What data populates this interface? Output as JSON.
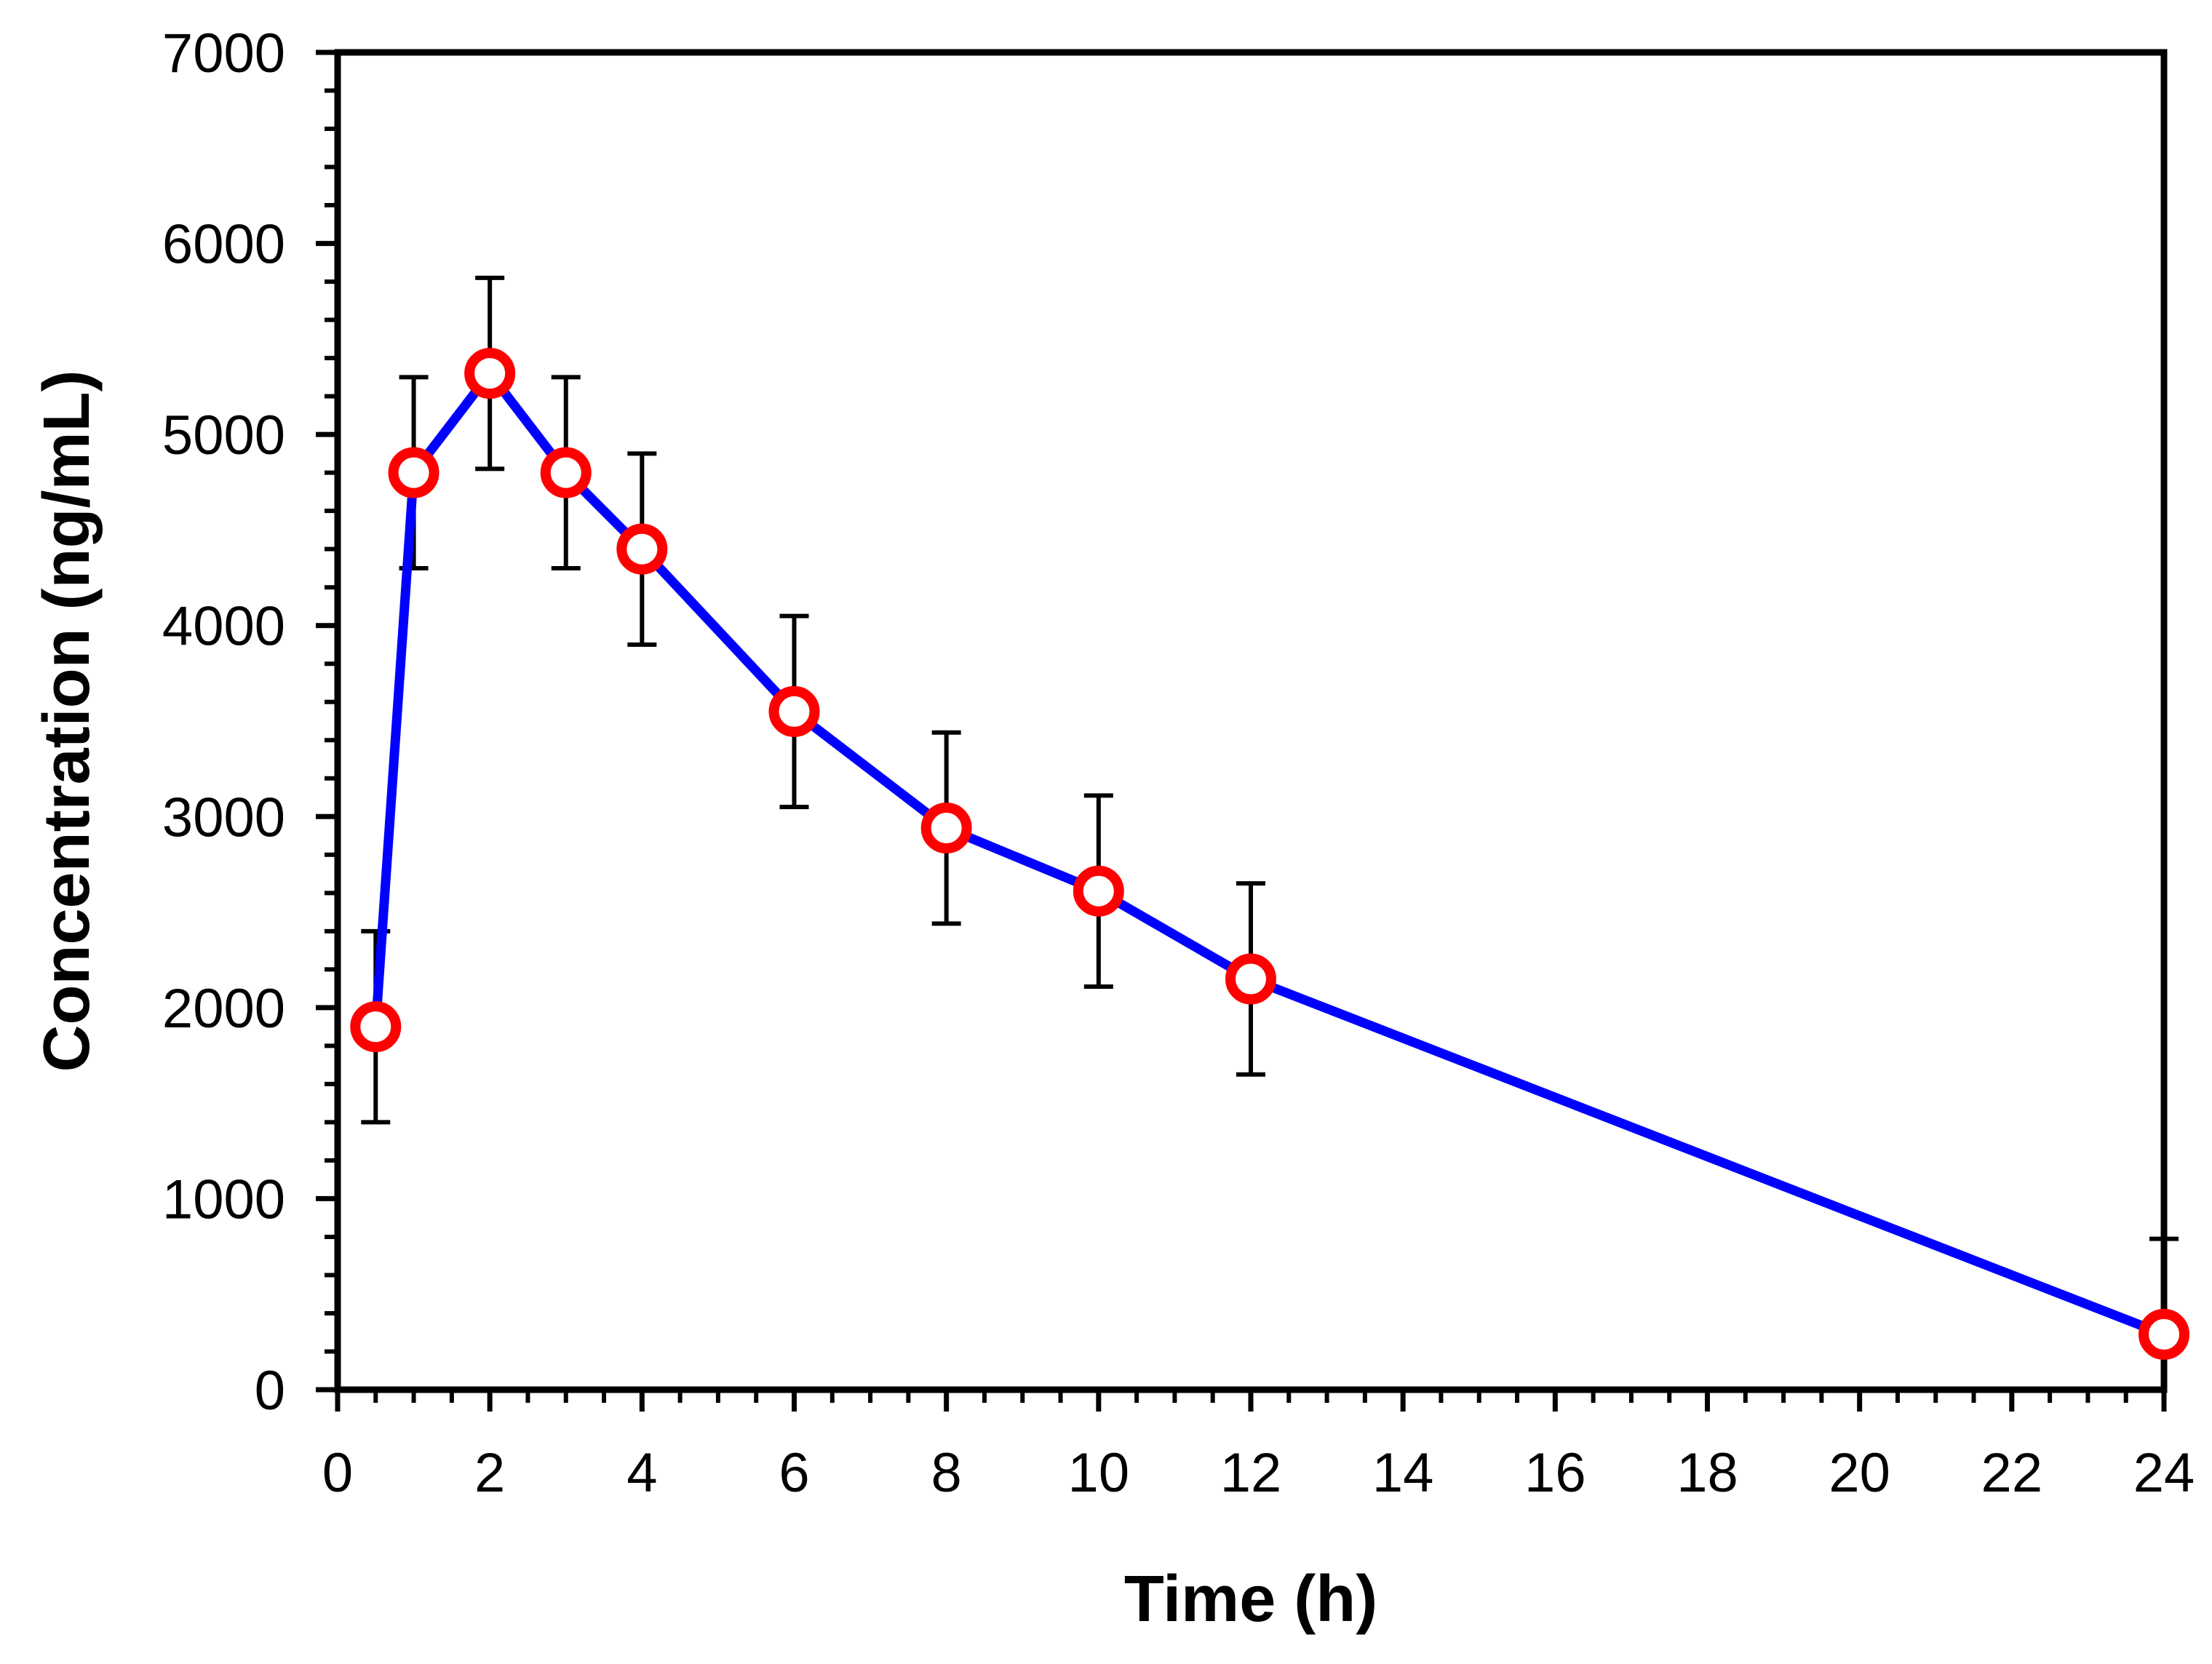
{
  "chart_data": {
    "type": "line",
    "title": "",
    "xlabel": "Time (h)",
    "ylabel": "Concentration (ng/mL)",
    "xlim": [
      0,
      24
    ],
    "ylim": [
      0,
      7000
    ],
    "x_ticks": [
      0,
      2,
      4,
      6,
      8,
      10,
      12,
      14,
      16,
      18,
      20,
      22,
      24
    ],
    "y_ticks": [
      0,
      1000,
      2000,
      3000,
      4000,
      5000,
      6000,
      7000
    ],
    "x_tick_labels": [
      "0",
      "2",
      "4",
      "6",
      "8",
      "10",
      "12",
      "14",
      "16",
      "18",
      "20",
      "22",
      "24"
    ],
    "y_tick_labels": [
      "0",
      "1000",
      "2000",
      "3000",
      "4000",
      "5000",
      "6000",
      "7000"
    ],
    "grid": false,
    "legend": "none",
    "series": [
      {
        "name": "Concentration",
        "x": [
          0.5,
          1,
          2,
          3,
          4,
          6,
          8,
          10,
          12,
          24
        ],
        "y": [
          1900,
          4800,
          5320,
          4800,
          4400,
          3550,
          2940,
          2610,
          2150,
          290
        ],
        "error": [
          500,
          500,
          500,
          500,
          500,
          500,
          500,
          500,
          500,
          500
        ],
        "line_color": "#0000ff",
        "marker_edge_color": "#ff0000",
        "marker_face_color": "#ffffff"
      }
    ]
  }
}
